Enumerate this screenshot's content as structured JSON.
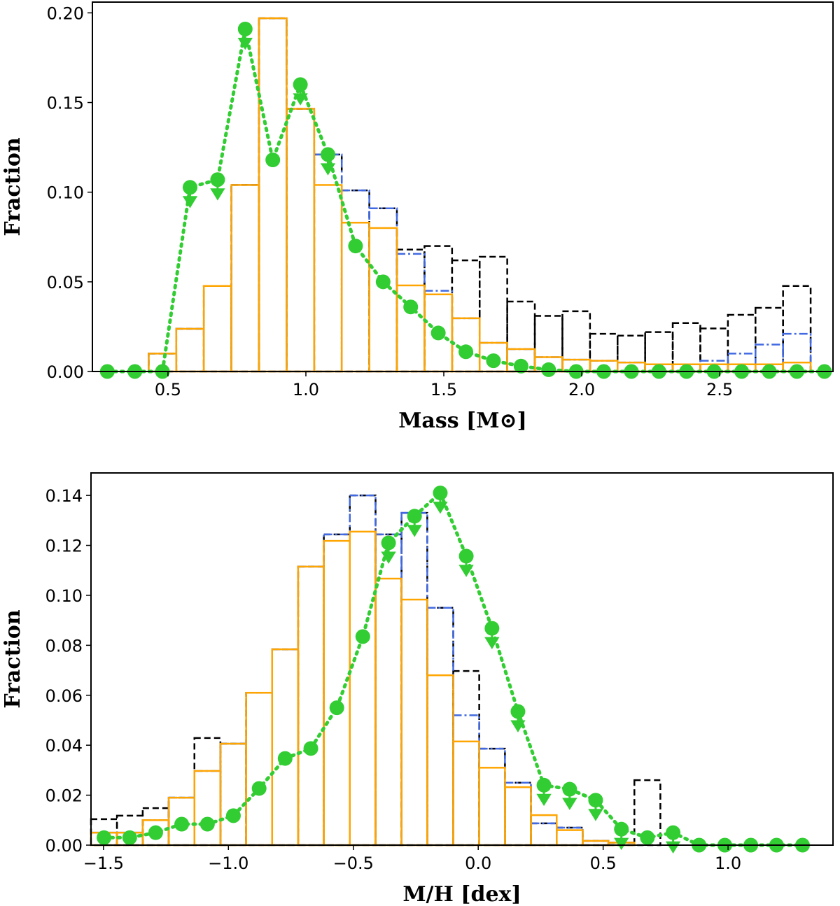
{
  "chart_data": [
    {
      "type": "histogram",
      "x_label": "Mass [M⊙]",
      "y_label": "Fraction",
      "xlim": [
        0.226,
        2.911
      ],
      "ylim": [
        0,
        0.206
      ],
      "xticks": [
        0.5,
        {
          "value": 1,
          "label": "1.0"
        },
        1.5,
        {
          "value": 2,
          "label": "2.0"
        },
        2.5
      ],
      "yticks": [
        {
          "value": 0,
          "label": "0.00"
        },
        {
          "value": 0.05,
          "label": "0.05"
        },
        {
          "value": 0.1,
          "label": "0.10"
        },
        {
          "value": 0.15,
          "label": "0.15"
        },
        {
          "value": 0.2,
          "label": "0.20"
        }
      ],
      "bins": [
        0.43,
        0.53,
        0.63,
        0.73,
        0.83,
        0.93,
        1.03,
        1.13,
        1.23,
        1.33,
        1.43,
        1.53,
        1.63,
        1.73,
        1.83,
        1.93,
        2.03,
        2.13,
        2.23,
        2.33,
        2.43,
        2.53,
        2.63,
        2.73,
        2.83
      ],
      "series": [
        {
          "color": "#000000",
          "linestyle": "dashed",
          "values": [
            0.01,
            0.0238,
            0.0477,
            0.104,
            0.197,
            0.1465,
            0.121,
            0.101,
            0.091,
            0.068,
            0.07,
            0.062,
            0.064,
            0.039,
            0.031,
            0.0336,
            0.021,
            0.02,
            0.022,
            0.027,
            0.024,
            0.0316,
            0.0355,
            0.0477
          ]
        },
        {
          "color": "#4169e1",
          "linestyle": "dashdot",
          "values": [
            0.01,
            0.0238,
            0.0477,
            0.104,
            0.197,
            0.1465,
            0.121,
            0.101,
            0.091,
            0.0656,
            0.045,
            0.0297,
            0.016,
            0.0125,
            0.008,
            0.0066,
            0.006,
            0.005,
            0.004,
            0.004,
            0.006,
            0.01,
            0.015,
            0.021
          ]
        },
        {
          "color": "#ffa500",
          "linestyle": "solid",
          "values": [
            0.01,
            0.0238,
            0.0477,
            0.104,
            0.197,
            0.1465,
            0.104,
            0.083,
            0.08,
            0.048,
            0.043,
            0.0297,
            0.016,
            0.0125,
            0.008,
            0.0066,
            0.006,
            0.005,
            0.004,
            0.004,
            0.004,
            0.004,
            0.004,
            0.005
          ]
        }
      ],
      "line": {
        "color": "#32cd32",
        "x": [
          0.28,
          0.38,
          0.48,
          0.58,
          0.68,
          0.78,
          0.88,
          0.98,
          1.08,
          1.18,
          1.28,
          1.38,
          1.48,
          1.58,
          1.68,
          1.78,
          1.88,
          1.98,
          2.08,
          2.18,
          2.28,
          2.38,
          2.48,
          2.58,
          2.68,
          2.78,
          2.88
        ],
        "values": [
          0,
          0,
          0,
          0.1027,
          0.107,
          0.191,
          0.118,
          0.16,
          0.121,
          0.07,
          0.05,
          0.036,
          0.0215,
          0.011,
          0.006,
          0.003,
          0.001,
          0,
          0,
          0,
          0,
          0,
          0,
          0,
          0,
          0,
          0
        ],
        "upper_limits": [
          false,
          false,
          false,
          true,
          true,
          true,
          false,
          true,
          true,
          false,
          false,
          false,
          false,
          false,
          false,
          false,
          false,
          false,
          false,
          false,
          false,
          false,
          false,
          false,
          false,
          false,
          false
        ]
      }
    },
    {
      "type": "histogram",
      "x_label": "M/H [dex]",
      "y_label": "Fraction",
      "xlim": [
        -1.55,
        1.42
      ],
      "ylim": [
        0,
        0.149
      ],
      "xticks": [
        {
          "value": -1.5,
          "label": "−1.5"
        },
        {
          "value": -1,
          "label": "−1.0"
        },
        {
          "value": -0.5,
          "label": "−0.5"
        },
        {
          "value": 0,
          "label": "0.0"
        },
        0.5,
        {
          "value": 1,
          "label": "1.0"
        }
      ],
      "yticks": [
        {
          "value": 0,
          "label": "0.00"
        },
        {
          "value": 0.02,
          "label": "0.02"
        },
        {
          "value": 0.04,
          "label": "0.04"
        },
        {
          "value": 0.06,
          "label": "0.06"
        },
        {
          "value": 0.08,
          "label": "0.08"
        },
        {
          "value": 0.1,
          "label": "0.10"
        },
        {
          "value": 0.12,
          "label": "0.12"
        },
        {
          "value": 0.14,
          "label": "0.14"
        }
      ],
      "bins": [
        -1.55,
        -1.446,
        -1.343,
        -1.239,
        -1.136,
        -1.032,
        -0.929,
        -0.825,
        -0.721,
        -0.618,
        -0.514,
        -0.411,
        -0.307,
        -0.204,
        -0.1,
        0.004,
        0.107,
        0.211,
        0.314,
        0.418,
        0.521,
        0.625,
        0.729,
        0.832,
        0.936,
        1.039,
        1.143,
        1.246,
        1.35
      ],
      "series": [
        {
          "color": "#000000",
          "linestyle": "dashed",
          "values": [
            0.0104,
            0.0118,
            0.0148,
            0.019,
            0.0429,
            0.0406,
            0.061,
            0.0784,
            0.1115,
            0.1244,
            0.14,
            0.1244,
            0.133,
            0.095,
            0.0697,
            0.0386,
            0.025,
            0.0087,
            0.007,
            0.0017,
            0.001,
            0.026,
            0,
            0,
            0,
            0,
            0,
            0
          ]
        },
        {
          "color": "#4169e1",
          "linestyle": "dashdot",
          "values": [
            0.005,
            0.005,
            0.01,
            0.019,
            0.0297,
            0.0406,
            0.061,
            0.0784,
            0.1115,
            0.1244,
            0.14,
            0.1244,
            0.133,
            0.095,
            0.052,
            0.0386,
            0.025,
            0.0087,
            0.007,
            0.0017,
            0.001,
            0,
            0,
            0,
            0,
            0,
            0,
            0
          ]
        },
        {
          "color": "#ffa500",
          "linestyle": "solid",
          "values": [
            0.005,
            0.005,
            0.01,
            0.019,
            0.0297,
            0.0406,
            0.061,
            0.0784,
            0.1115,
            0.1218,
            0.1255,
            0.1067,
            0.0983,
            0.068,
            0.0415,
            0.031,
            0.0232,
            0.012,
            0.006,
            0.0017,
            0.001,
            0,
            0,
            0,
            0,
            0,
            0,
            0
          ]
        }
      ],
      "line": {
        "color": "#32cd32",
        "x": [
          -1.498,
          -1.395,
          -1.291,
          -1.187,
          -1.084,
          -0.98,
          -0.877,
          -0.773,
          -0.67,
          -0.566,
          -0.462,
          -0.359,
          -0.255,
          -0.152,
          -0.048,
          0.055,
          0.159,
          0.263,
          0.366,
          0.47,
          0.573,
          0.677,
          0.78,
          0.884,
          0.987,
          1.091,
          1.194,
          1.298
        ],
        "values": [
          0.003,
          0.003,
          0.005,
          0.0084,
          0.0084,
          0.0118,
          0.0227,
          0.0347,
          0.0387,
          0.055,
          0.0835,
          0.121,
          0.1317,
          0.141,
          0.1157,
          0.0868,
          0.0535,
          0.024,
          0.0224,
          0.018,
          0.0064,
          0.003,
          0.005,
          0,
          0,
          0,
          0,
          0
        ],
        "upper_limits": [
          false,
          false,
          false,
          false,
          false,
          false,
          false,
          false,
          false,
          false,
          false,
          true,
          true,
          true,
          true,
          true,
          true,
          true,
          true,
          true,
          true,
          false,
          true,
          false,
          false,
          false,
          false,
          false
        ]
      }
    }
  ]
}
